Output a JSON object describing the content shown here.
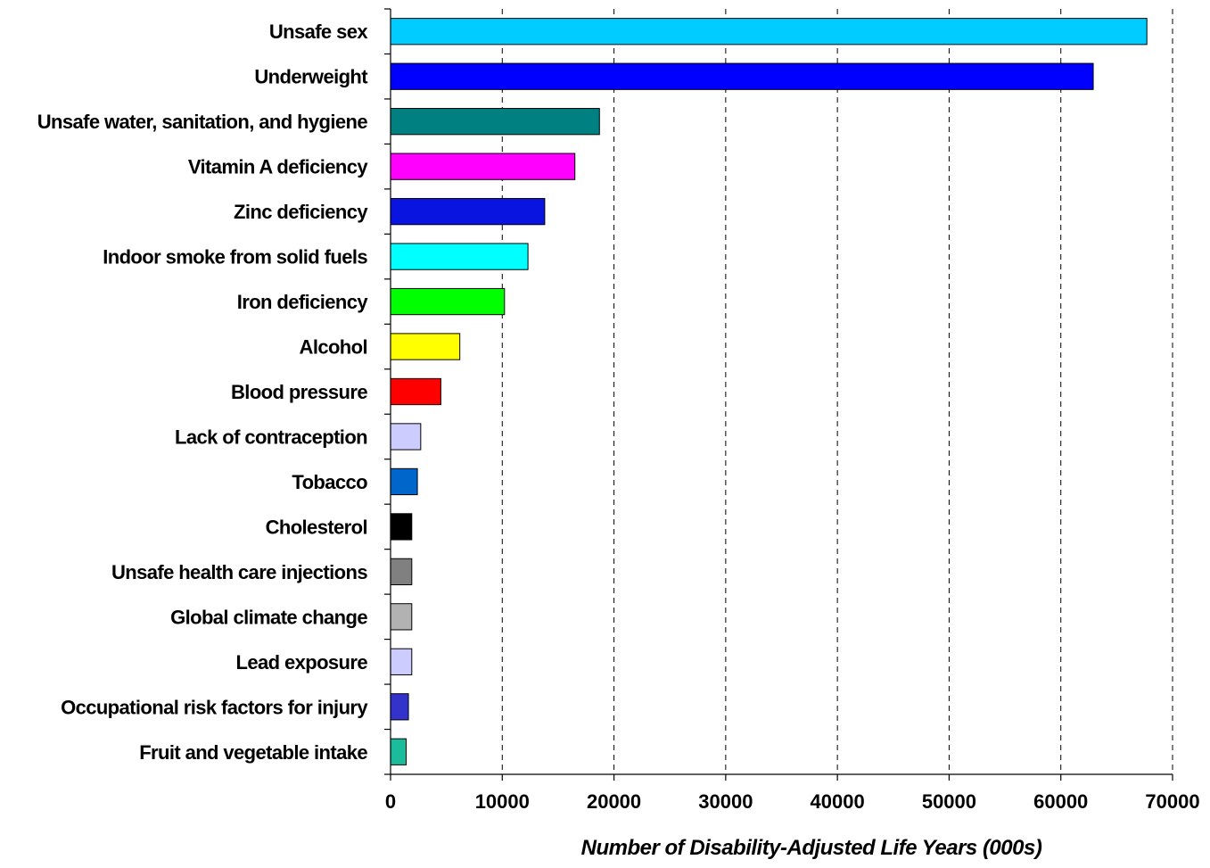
{
  "chart_data": {
    "type": "bar",
    "orientation": "horizontal",
    "title": "",
    "xlabel": "Number of Disability-Adjusted Life Years (000s)",
    "ylabel": "",
    "xlim": [
      0,
      70000
    ],
    "xticks": [
      "0",
      "10000",
      "20000",
      "30000",
      "40000",
      "50000",
      "60000",
      "70000"
    ],
    "grid": "vertical dashed",
    "legend": "none",
    "bars": [
      {
        "label": "Unsafe sex",
        "value": 67700,
        "color": "#00CCFF"
      },
      {
        "label": "Underweight",
        "value": 62900,
        "color": "#0000FF"
      },
      {
        "label": "Unsafe water, sanitation, and hygiene",
        "value": 18700,
        "color": "#008080"
      },
      {
        "label": "Vitamin A deficiency",
        "value": 16500,
        "color": "#FF00FF"
      },
      {
        "label": "Zinc deficiency",
        "value": 13800,
        "color": "#0A14E0"
      },
      {
        "label": "Indoor smoke from solid fuels",
        "value": 12300,
        "color": "#00FFFF"
      },
      {
        "label": "Iron deficiency",
        "value": 10200,
        "color": "#00FF00"
      },
      {
        "label": "Alcohol",
        "value": 6200,
        "color": "#FFFF00"
      },
      {
        "label": "Blood pressure",
        "value": 4500,
        "color": "#FF0000"
      },
      {
        "label": "Lack of contraception",
        "value": 2700,
        "color": "#CCCCFF"
      },
      {
        "label": "Tobacco",
        "value": 2400,
        "color": "#0066CC"
      },
      {
        "label": "Cholesterol",
        "value": 1900,
        "color": "#000000"
      },
      {
        "label": "Unsafe health care injections",
        "value": 1900,
        "color": "#808080"
      },
      {
        "label": "Global climate change",
        "value": 1900,
        "color": "#B2B2B2"
      },
      {
        "label": "Lead exposure",
        "value": 1900,
        "color": "#CCCCFF"
      },
      {
        "label": "Occupational risk factors for injury",
        "value": 1600,
        "color": "#3333CC"
      },
      {
        "label": "Fruit and vegetable intake",
        "value": 1400,
        "color": "#1ABC9C"
      }
    ]
  }
}
